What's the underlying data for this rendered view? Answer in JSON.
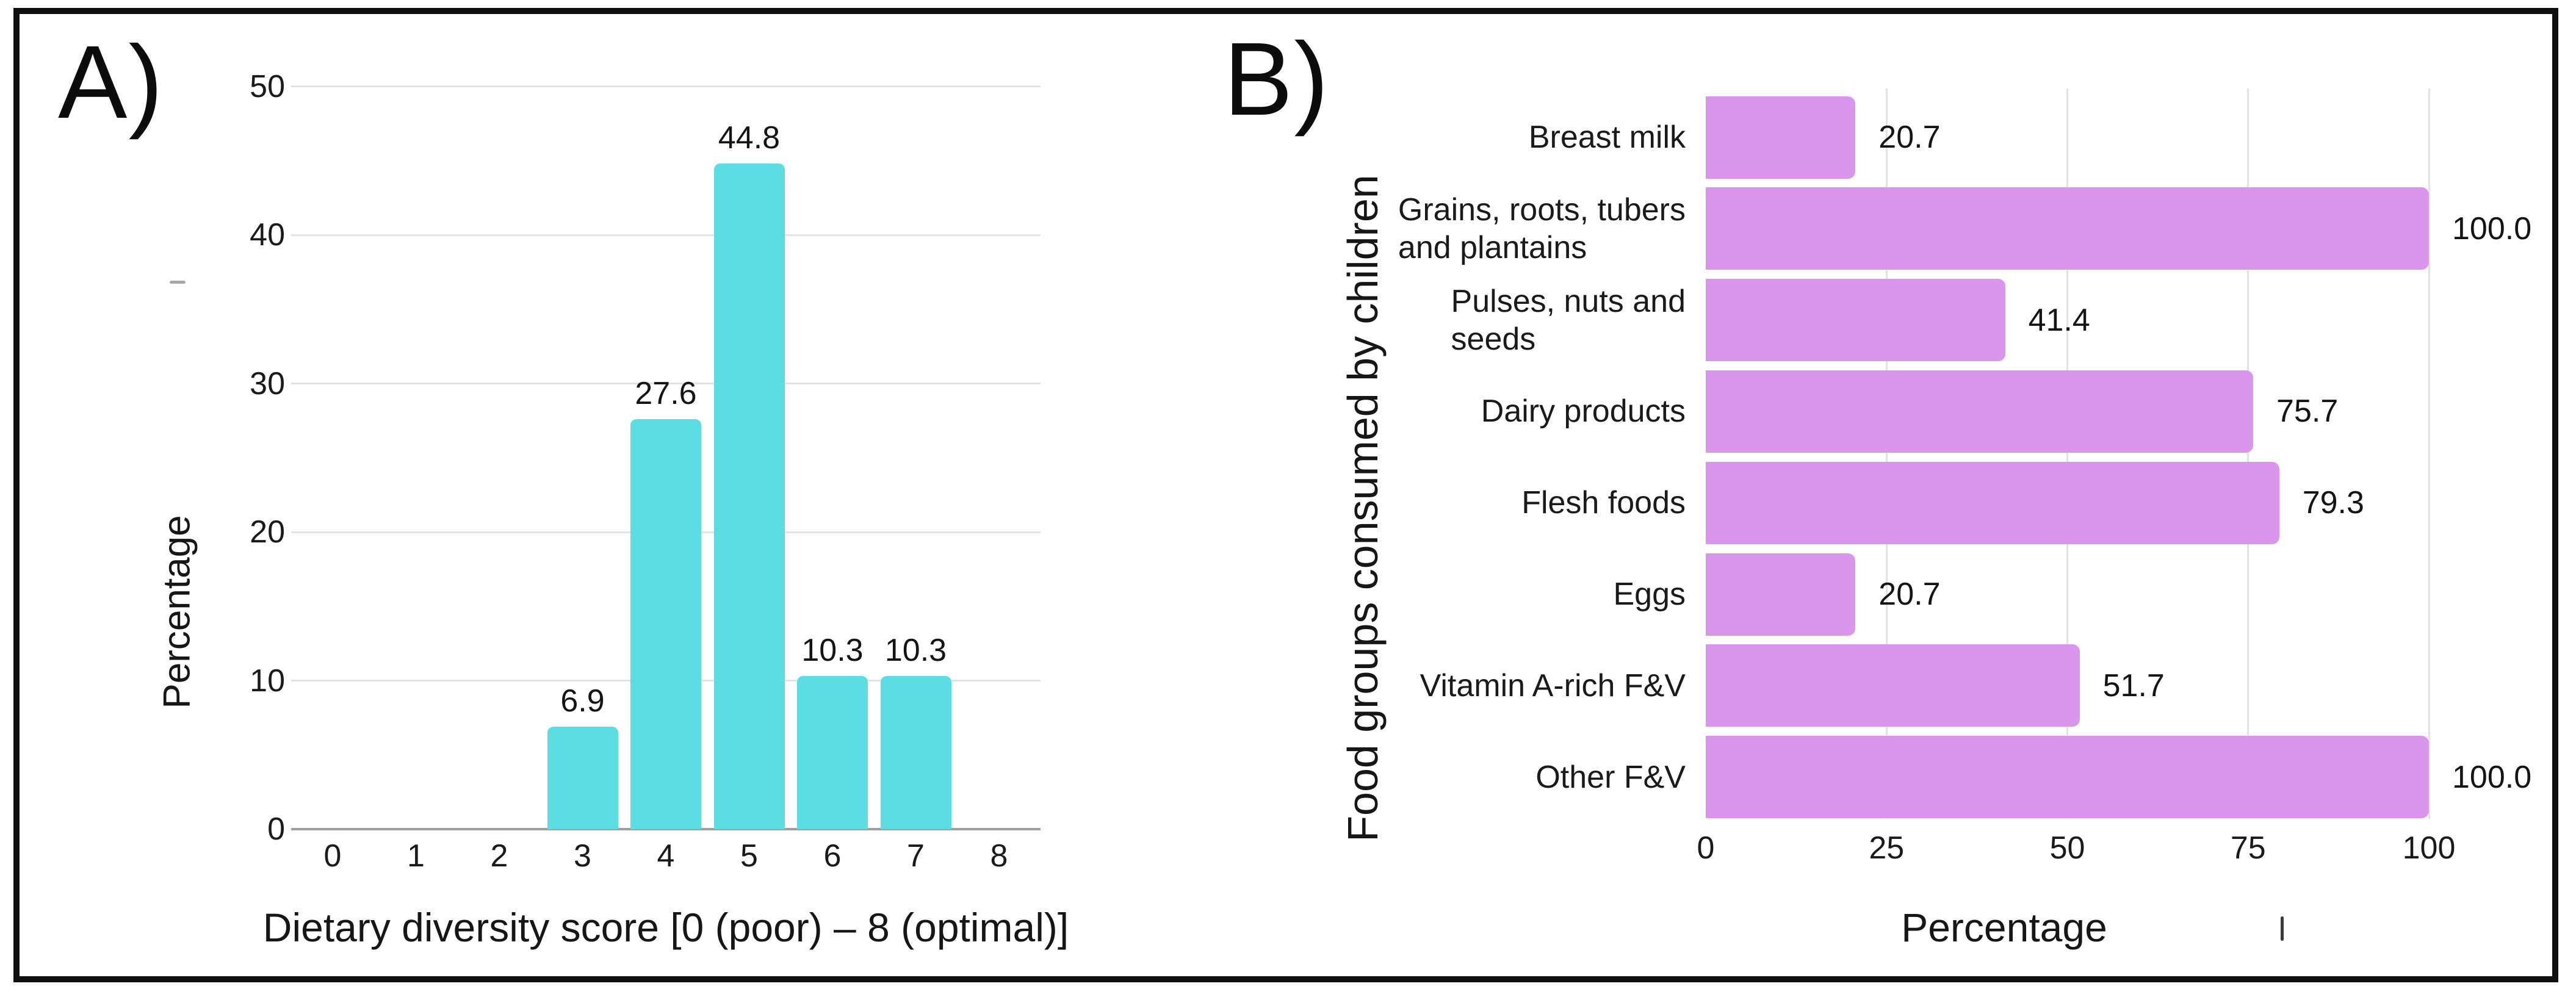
{
  "figure": {
    "panels": [
      {
        "id": "A",
        "label": "A)"
      },
      {
        "id": "B",
        "label": "B)"
      }
    ]
  },
  "chart_data": [
    {
      "type": "bar",
      "panel": "A",
      "orientation": "vertical",
      "categories": [
        "0",
        "1",
        "2",
        "3",
        "4",
        "5",
        "6",
        "7",
        "8"
      ],
      "values": [
        0,
        0,
        0,
        6.9,
        27.6,
        44.8,
        10.3,
        10.3,
        0
      ],
      "value_labels": [
        "",
        "",
        "",
        "6.9",
        "27.6",
        "44.8",
        "10.3",
        "10.3",
        ""
      ],
      "xlabel": "Dietary diversity score [0 (poor) – 8 (optimal)]",
      "ylabel": "Percentage",
      "ylim": [
        0,
        50
      ],
      "yticks": [
        0,
        10,
        20,
        30,
        40,
        50
      ],
      "grid": "horizontal",
      "legend": "none",
      "bar_color": "#5cdde1"
    },
    {
      "type": "bar",
      "panel": "B",
      "orientation": "horizontal",
      "categories": [
        "Breast milk",
        "Grains, roots, tubers\nand plantains",
        "Pulses, nuts and\nseeds",
        "Dairy products",
        "Flesh foods",
        "Eggs",
        "Vitamin A-rich F&V",
        "Other F&V"
      ],
      "values": [
        20.7,
        100.0,
        41.4,
        75.7,
        79.3,
        20.7,
        51.7,
        100.0
      ],
      "value_labels": [
        "20.7",
        "100.0",
        "41.4",
        "75.7",
        "79.3",
        "20.7",
        "51.7",
        "100.0"
      ],
      "xlabel": "Percentage",
      "ylabel": "Food groups consumed by children",
      "xlim": [
        0,
        100
      ],
      "xticks": [
        0,
        25,
        50,
        75,
        100
      ],
      "grid": "vertical",
      "legend": "none",
      "bar_color": "#d996ec"
    }
  ]
}
